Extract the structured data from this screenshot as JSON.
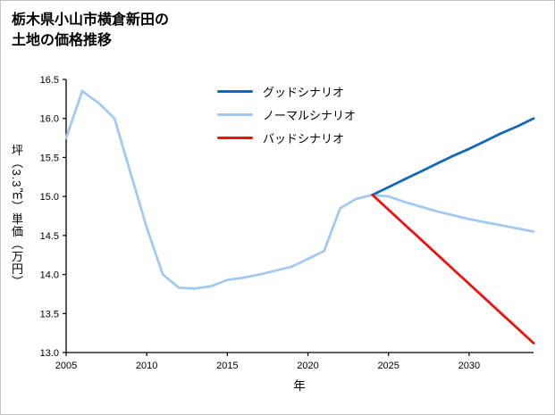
{
  "chart_data": {
    "type": "line",
    "title": "栃木県小山市横倉新田の\n土地の価格推移",
    "xlabel": "年",
    "ylabel": "坪（3.3㎡）単価（万円）",
    "xlim": [
      2005,
      2034
    ],
    "ylim": [
      13.0,
      16.5
    ],
    "xticks": [
      2005,
      2010,
      2015,
      2020,
      2025,
      2030
    ],
    "xtick_labels": [
      "2005",
      "2010",
      "2015",
      "2020",
      "2025",
      "2030"
    ],
    "yticks": [
      13.0,
      13.5,
      14.0,
      14.5,
      15.0,
      15.5,
      16.0,
      16.5
    ],
    "ytick_labels": [
      "13.0",
      "13.5",
      "14.0",
      "14.5",
      "15.0",
      "15.5",
      "16.0",
      "16.5"
    ],
    "grid": false,
    "legend_position": "upper center inside",
    "axis_color": "#000000",
    "tick_label_color": "#000000",
    "series": [
      {
        "name": "グッドシナリオ",
        "color": "#1467b8",
        "x": [
          2024,
          2025,
          2026,
          2027,
          2028,
          2029,
          2030,
          2031,
          2032,
          2033,
          2034
        ],
        "values": [
          15.02,
          15.12,
          15.22,
          15.32,
          15.42,
          15.52,
          15.61,
          15.71,
          15.81,
          15.9,
          16.0
        ]
      },
      {
        "name": "ノーマルシナリオ",
        "color": "#a3c9f2",
        "x": [
          2005,
          2006,
          2007,
          2008,
          2009,
          2010,
          2011,
          2012,
          2013,
          2014,
          2015,
          2016,
          2017,
          2018,
          2019,
          2020,
          2021,
          2022,
          2023,
          2024,
          2025,
          2026,
          2027,
          2028,
          2029,
          2030,
          2031,
          2032,
          2033,
          2034
        ],
        "values": [
          15.75,
          16.35,
          16.2,
          16.0,
          15.3,
          14.6,
          14.0,
          13.83,
          13.82,
          13.85,
          13.93,
          13.96,
          14.0,
          14.05,
          14.1,
          14.2,
          14.3,
          14.85,
          14.97,
          15.02,
          15.0,
          14.93,
          14.87,
          14.81,
          14.76,
          14.71,
          14.67,
          14.63,
          14.59,
          14.55
        ]
      },
      {
        "name": "バッドシナリオ",
        "color": "#ee1111",
        "x": [
          2024,
          2025,
          2026,
          2027,
          2028,
          2029,
          2030,
          2031,
          2032,
          2033,
          2034
        ],
        "values": [
          15.02,
          14.83,
          14.64,
          14.45,
          14.26,
          14.07,
          13.88,
          13.69,
          13.5,
          13.31,
          13.12
        ]
      }
    ]
  }
}
